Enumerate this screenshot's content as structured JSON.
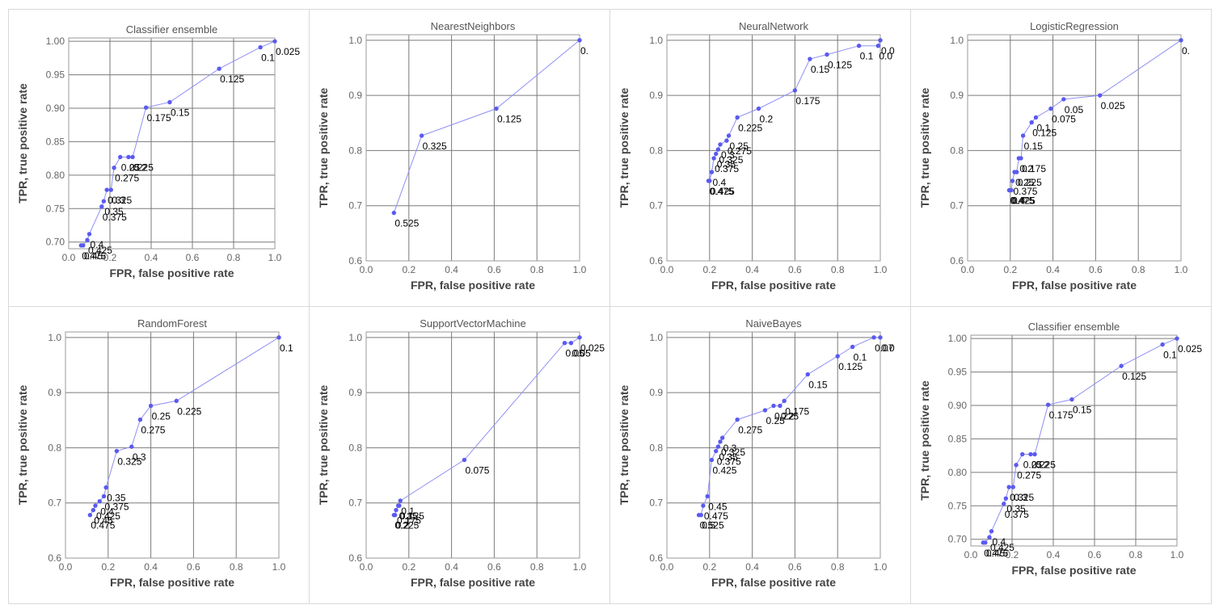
{
  "colors": {
    "line": "#8f8ff5",
    "point": "#5a5af0",
    "grid": "#7a7a7a",
    "frame": "#9a9a9a"
  },
  "chart_data": [
    {
      "type": "line",
      "title": "Classifier ensemble",
      "xlabel": "FPR, false positive rate",
      "ylabel": "TPR, true positive rate",
      "xlim": [
        0.0,
        1.0
      ],
      "ylim": [
        0.69,
        1.005
      ],
      "xticks": [
        0.0,
        0.2,
        0.4,
        0.6,
        0.8,
        1.0
      ],
      "xtick_labels": [
        "0.0",
        "0.2",
        "0.4",
        "0.6",
        "0.8",
        "1.0"
      ],
      "yticks": [
        0.7,
        0.75,
        0.8,
        0.85,
        0.9,
        0.95,
        1.0
      ],
      "ytick_labels": [
        "0.70",
        "0.75",
        "0.80",
        "0.85",
        "0.90",
        "0.95",
        "1.00"
      ],
      "points": [
        {
          "x": 1.0,
          "y": 1.0,
          "label": "0.025"
        },
        {
          "x": 0.93,
          "y": 0.991,
          "label": "0.1"
        },
        {
          "x": 0.73,
          "y": 0.959,
          "label": "0.125"
        },
        {
          "x": 0.49,
          "y": 0.909,
          "label": "0.15"
        },
        {
          "x": 0.375,
          "y": 0.901,
          "label": "0.175"
        },
        {
          "x": 0.31,
          "y": 0.827,
          "label": "0.2"
        },
        {
          "x": 0.29,
          "y": 0.827,
          "label": "0.225"
        },
        {
          "x": 0.25,
          "y": 0.827,
          "label": "0.25"
        },
        {
          "x": 0.22,
          "y": 0.811,
          "label": "0.275"
        },
        {
          "x": 0.205,
          "y": 0.778,
          "label": "0.3"
        },
        {
          "x": 0.185,
          "y": 0.778,
          "label": "0.325"
        },
        {
          "x": 0.17,
          "y": 0.761,
          "label": "0.35"
        },
        {
          "x": 0.16,
          "y": 0.753,
          "label": "0.375"
        },
        {
          "x": 0.1,
          "y": 0.712,
          "label": "0.4"
        },
        {
          "x": 0.09,
          "y": 0.703,
          "label": "0.425"
        },
        {
          "x": 0.07,
          "y": 0.695,
          "label": "0.45"
        },
        {
          "x": 0.06,
          "y": 0.695,
          "label": "0.475"
        }
      ]
    },
    {
      "type": "line",
      "title": "NearestNeighbors",
      "xlabel": "FPR, false positive rate",
      "ylabel": "TPR, true positive rate",
      "xlim": [
        0.0,
        1.0
      ],
      "ylim": [
        0.6,
        1.01
      ],
      "xticks": [
        0.0,
        0.2,
        0.4,
        0.6,
        0.8,
        1.0
      ],
      "xtick_labels": [
        "0.0",
        "0.2",
        "0.4",
        "0.6",
        "0.8",
        "1.0"
      ],
      "yticks": [
        0.6,
        0.7,
        0.8,
        0.9,
        1.0
      ],
      "ytick_labels": [
        "0.6",
        "0.7",
        "0.8",
        "0.9",
        "1.0"
      ],
      "points": [
        {
          "x": 1.0,
          "y": 1.0,
          "label": "0."
        },
        {
          "x": 0.61,
          "y": 0.876,
          "label": "0.125"
        },
        {
          "x": 0.26,
          "y": 0.827,
          "label": "0.325"
        },
        {
          "x": 0.13,
          "y": 0.687,
          "label": "0.525"
        }
      ]
    },
    {
      "type": "line",
      "title": "NeuralNetwork",
      "xlabel": "FPR, false positive rate",
      "ylabel": "TPR, true positive rate",
      "xlim": [
        0.0,
        1.0
      ],
      "ylim": [
        0.6,
        1.01
      ],
      "xticks": [
        0.0,
        0.2,
        0.4,
        0.6,
        0.8,
        1.0
      ],
      "xtick_labels": [
        "0.0",
        "0.2",
        "0.4",
        "0.6",
        "0.8",
        "1.0"
      ],
      "yticks": [
        0.6,
        0.7,
        0.8,
        0.9,
        1.0
      ],
      "ytick_labels": [
        "0.6",
        "0.7",
        "0.8",
        "0.9",
        "1.0"
      ],
      "points": [
        {
          "x": 1.0,
          "y": 1.0,
          "label": "0.0"
        },
        {
          "x": 0.99,
          "y": 0.99,
          "label": "0.0"
        },
        {
          "x": 0.9,
          "y": 0.99,
          "label": "0.1"
        },
        {
          "x": 0.75,
          "y": 0.974,
          "label": "0.125"
        },
        {
          "x": 0.67,
          "y": 0.966,
          "label": "0.15"
        },
        {
          "x": 0.6,
          "y": 0.909,
          "label": "0.175"
        },
        {
          "x": 0.43,
          "y": 0.876,
          "label": "0.2"
        },
        {
          "x": 0.33,
          "y": 0.86,
          "label": "0.225"
        },
        {
          "x": 0.29,
          "y": 0.827,
          "label": "0.25"
        },
        {
          "x": 0.28,
          "y": 0.818,
          "label": "0.275"
        },
        {
          "x": 0.25,
          "y": 0.811,
          "label": "0.3"
        },
        {
          "x": 0.24,
          "y": 0.802,
          "label": "0.325"
        },
        {
          "x": 0.23,
          "y": 0.794,
          "label": "0.35"
        },
        {
          "x": 0.22,
          "y": 0.786,
          "label": "0.375"
        },
        {
          "x": 0.21,
          "y": 0.761,
          "label": "0.4"
        },
        {
          "x": 0.2,
          "y": 0.745,
          "label": "0.425"
        },
        {
          "x": 0.195,
          "y": 0.745,
          "label": "0.475"
        }
      ]
    },
    {
      "type": "line",
      "title": "LogisticRegression",
      "xlabel": "FPR, false positive rate",
      "ylabel": "TPR, true positive rate",
      "xlim": [
        0.0,
        1.0
      ],
      "ylim": [
        0.6,
        1.01
      ],
      "xticks": [
        0.0,
        0.2,
        0.4,
        0.6,
        0.8,
        1.0
      ],
      "xtick_labels": [
        "0.0",
        "0.2",
        "0.4",
        "0.6",
        "0.8",
        "1.0"
      ],
      "yticks": [
        0.6,
        0.7,
        0.8,
        0.9,
        1.0
      ],
      "ytick_labels": [
        "0.6",
        "0.7",
        "0.8",
        "0.9",
        "1.0"
      ],
      "points": [
        {
          "x": 1.0,
          "y": 1.0,
          "label": "0."
        },
        {
          "x": 0.62,
          "y": 0.9,
          "label": "0.025"
        },
        {
          "x": 0.45,
          "y": 0.893,
          "label": "0.05"
        },
        {
          "x": 0.39,
          "y": 0.876,
          "label": "0.075"
        },
        {
          "x": 0.32,
          "y": 0.86,
          "label": "0.1"
        },
        {
          "x": 0.3,
          "y": 0.851,
          "label": "0.125"
        },
        {
          "x": 0.26,
          "y": 0.827,
          "label": "0.15"
        },
        {
          "x": 0.25,
          "y": 0.786,
          "label": "0.175"
        },
        {
          "x": 0.24,
          "y": 0.786,
          "label": "0.2"
        },
        {
          "x": 0.23,
          "y": 0.761,
          "label": "0.225"
        },
        {
          "x": 0.22,
          "y": 0.761,
          "label": "0.25"
        },
        {
          "x": 0.21,
          "y": 0.745,
          "label": "0.375"
        },
        {
          "x": 0.205,
          "y": 0.728,
          "label": "0.4"
        },
        {
          "x": 0.2,
          "y": 0.728,
          "label": "0.425"
        },
        {
          "x": 0.195,
          "y": 0.728,
          "label": "0.475"
        }
      ]
    },
    {
      "type": "line",
      "title": "RandomForest",
      "xlabel": "FPR, false positive rate",
      "ylabel": "TPR, true positive rate",
      "xlim": [
        0.0,
        1.0
      ],
      "ylim": [
        0.6,
        1.01
      ],
      "xticks": [
        0.0,
        0.2,
        0.4,
        0.6,
        0.8,
        1.0
      ],
      "xtick_labels": [
        "0.0",
        "0.2",
        "0.4",
        "0.6",
        "0.8",
        "1.0"
      ],
      "yticks": [
        0.6,
        0.7,
        0.8,
        0.9,
        1.0
      ],
      "ytick_labels": [
        "0.6",
        "0.7",
        "0.8",
        "0.9",
        "1.0"
      ],
      "points": [
        {
          "x": 1.0,
          "y": 1.0,
          "label": "0.1"
        },
        {
          "x": 0.52,
          "y": 0.885,
          "label": "0.225"
        },
        {
          "x": 0.4,
          "y": 0.876,
          "label": "0.25"
        },
        {
          "x": 0.35,
          "y": 0.851,
          "label": "0.275"
        },
        {
          "x": 0.31,
          "y": 0.802,
          "label": "0.3"
        },
        {
          "x": 0.24,
          "y": 0.794,
          "label": "0.325"
        },
        {
          "x": 0.19,
          "y": 0.728,
          "label": "0.35"
        },
        {
          "x": 0.18,
          "y": 0.712,
          "label": "0.375"
        },
        {
          "x": 0.16,
          "y": 0.703,
          "label": "0.4"
        },
        {
          "x": 0.14,
          "y": 0.695,
          "label": "0.425"
        },
        {
          "x": 0.13,
          "y": 0.687,
          "label": "0.45"
        },
        {
          "x": 0.115,
          "y": 0.678,
          "label": "0.475"
        }
      ]
    },
    {
      "type": "line",
      "title": "SupportVectorMachine",
      "xlabel": "FPR, false positive rate",
      "ylabel": "TPR, true positive rate",
      "xlim": [
        0.0,
        1.0
      ],
      "ylim": [
        0.6,
        1.01
      ],
      "xticks": [
        0.0,
        0.2,
        0.4,
        0.6,
        0.8,
        1.0
      ],
      "xtick_labels": [
        "0.0",
        "0.2",
        "0.4",
        "0.6",
        "0.8",
        "1.0"
      ],
      "yticks": [
        0.6,
        0.7,
        0.8,
        0.9,
        1.0
      ],
      "ytick_labels": [
        "0.6",
        "0.7",
        "0.8",
        "0.9",
        "1.0"
      ],
      "points": [
        {
          "x": 1.0,
          "y": 1.0,
          "label": "0.025"
        },
        {
          "x": 0.96,
          "y": 0.99,
          "label": "0.05"
        },
        {
          "x": 0.93,
          "y": 0.99,
          "label": "0.05"
        },
        {
          "x": 0.46,
          "y": 0.778,
          "label": "0.075"
        },
        {
          "x": 0.16,
          "y": 0.704,
          "label": "0.1"
        },
        {
          "x": 0.155,
          "y": 0.695,
          "label": "0.125"
        },
        {
          "x": 0.15,
          "y": 0.695,
          "label": "0.15"
        },
        {
          "x": 0.14,
          "y": 0.687,
          "label": "0.175"
        },
        {
          "x": 0.135,
          "y": 0.678,
          "label": "0.2"
        },
        {
          "x": 0.13,
          "y": 0.678,
          "label": "0.225"
        }
      ]
    },
    {
      "type": "line",
      "title": "NaiveBayes",
      "xlabel": "FPR, false positive rate",
      "ylabel": "TPR, true positive rate",
      "xlim": [
        0.0,
        1.0
      ],
      "ylim": [
        0.6,
        1.01
      ],
      "xticks": [
        0.0,
        0.2,
        0.4,
        0.6,
        0.8,
        1.0
      ],
      "xtick_labels": [
        "0.0",
        "0.2",
        "0.4",
        "0.6",
        "0.8",
        "1.0"
      ],
      "yticks": [
        0.6,
        0.7,
        0.8,
        0.9,
        1.0
      ],
      "ytick_labels": [
        "0.6",
        "0.7",
        "0.8",
        "0.9",
        "1.0"
      ],
      "points": [
        {
          "x": 1.0,
          "y": 1.0,
          "label": "0.0"
        },
        {
          "x": 0.97,
          "y": 1.0,
          "label": "0.07"
        },
        {
          "x": 0.87,
          "y": 0.983,
          "label": "0.1"
        },
        {
          "x": 0.8,
          "y": 0.966,
          "label": "0.125"
        },
        {
          "x": 0.66,
          "y": 0.933,
          "label": "0.15"
        },
        {
          "x": 0.55,
          "y": 0.885,
          "label": "0.175"
        },
        {
          "x": 0.53,
          "y": 0.876,
          "label": "0.2"
        },
        {
          "x": 0.5,
          "y": 0.876,
          "label": "0.225"
        },
        {
          "x": 0.46,
          "y": 0.868,
          "label": "0.25"
        },
        {
          "x": 0.33,
          "y": 0.851,
          "label": "0.275"
        },
        {
          "x": 0.26,
          "y": 0.818,
          "label": "0.3"
        },
        {
          "x": 0.25,
          "y": 0.811,
          "label": "0.325"
        },
        {
          "x": 0.24,
          "y": 0.802,
          "label": "0.35"
        },
        {
          "x": 0.23,
          "y": 0.794,
          "label": "0.375"
        },
        {
          "x": 0.21,
          "y": 0.778,
          "label": "0.425"
        },
        {
          "x": 0.19,
          "y": 0.712,
          "label": "0.45"
        },
        {
          "x": 0.17,
          "y": 0.695,
          "label": "0.475"
        },
        {
          "x": 0.16,
          "y": 0.678,
          "label": "0.5"
        },
        {
          "x": 0.15,
          "y": 0.678,
          "label": "0.525"
        }
      ]
    },
    {
      "type": "line",
      "title": "Classifier ensemble",
      "xlabel": "FPR, false positive rate",
      "ylabel": "TPR, true positive rate",
      "xlim": [
        0.0,
        1.0
      ],
      "ylim": [
        0.69,
        1.005
      ],
      "xticks": [
        0.0,
        0.2,
        0.4,
        0.6,
        0.8,
        1.0
      ],
      "xtick_labels": [
        "0.0",
        "0.2",
        "0.4",
        "0.6",
        "0.8",
        "1.0"
      ],
      "yticks": [
        0.7,
        0.75,
        0.8,
        0.85,
        0.9,
        0.95,
        1.0
      ],
      "ytick_labels": [
        "0.70",
        "0.75",
        "0.80",
        "0.85",
        "0.90",
        "0.95",
        "1.00"
      ],
      "points": [
        {
          "x": 1.0,
          "y": 1.0,
          "label": "0.025"
        },
        {
          "x": 0.93,
          "y": 0.991,
          "label": "0.1"
        },
        {
          "x": 0.73,
          "y": 0.959,
          "label": "0.125"
        },
        {
          "x": 0.49,
          "y": 0.909,
          "label": "0.15"
        },
        {
          "x": 0.375,
          "y": 0.901,
          "label": "0.175"
        },
        {
          "x": 0.31,
          "y": 0.827,
          "label": "0.2"
        },
        {
          "x": 0.29,
          "y": 0.827,
          "label": "0.225"
        },
        {
          "x": 0.25,
          "y": 0.827,
          "label": "0.25"
        },
        {
          "x": 0.22,
          "y": 0.811,
          "label": "0.275"
        },
        {
          "x": 0.205,
          "y": 0.778,
          "label": "0.3"
        },
        {
          "x": 0.185,
          "y": 0.778,
          "label": "0.325"
        },
        {
          "x": 0.17,
          "y": 0.761,
          "label": "0.35"
        },
        {
          "x": 0.16,
          "y": 0.753,
          "label": "0.375"
        },
        {
          "x": 0.1,
          "y": 0.712,
          "label": "0.4"
        },
        {
          "x": 0.09,
          "y": 0.703,
          "label": "0.425"
        },
        {
          "x": 0.07,
          "y": 0.695,
          "label": "0.45"
        },
        {
          "x": 0.06,
          "y": 0.695,
          "label": "0.475"
        }
      ]
    }
  ]
}
